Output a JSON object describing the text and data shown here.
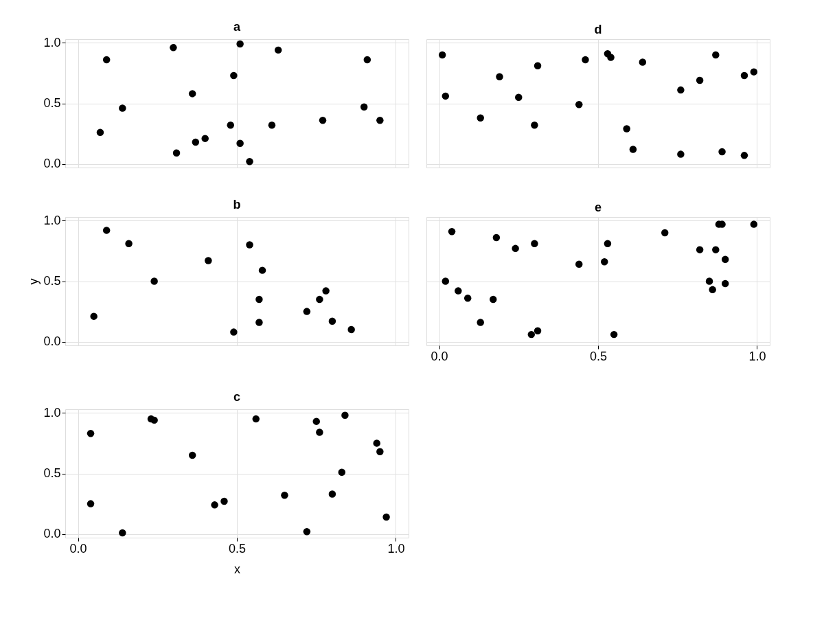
{
  "chart_data": [
    {
      "type": "scatter",
      "title": "a",
      "tick_labels": "y",
      "grid": true,
      "marker": "circle",
      "xlim": [
        -0.04,
        1.04
      ],
      "ylim": [
        -0.03,
        1.03
      ],
      "xticks": [
        0.0,
        0.5,
        1.0
      ],
      "yticks": [
        {
          "value": 0,
          "label": "0.0"
        },
        {
          "value": 0.5,
          "label": "0.5"
        },
        {
          "value": 1,
          "label": "1.0"
        }
      ],
      "x": [
        0.07,
        0.09,
        0.14,
        0.3,
        0.31,
        0.36,
        0.37,
        0.4,
        0.48,
        0.49,
        0.51,
        0.51,
        0.54,
        0.61,
        0.63,
        0.77,
        0.9,
        0.91,
        0.95
      ],
      "series": [
        {
          "color": "#000000",
          "values": [
            0.26,
            0.86,
            0.46,
            0.96,
            0.09,
            0.58,
            0.18,
            0.21,
            0.32,
            0.73,
            0.99,
            0.17,
            0.02,
            0.32,
            0.94,
            0.36,
            0.47,
            0.86,
            0.36
          ]
        }
      ]
    },
    {
      "type": "scatter",
      "title": "d",
      "tick_labels": false,
      "grid": true,
      "marker": "circle",
      "xlim": [
        -0.04,
        1.04
      ],
      "ylim": [
        -0.03,
        1.03
      ],
      "xticks": [
        0.0,
        0.5,
        1.0
      ],
      "yticks": [
        0,
        0.5,
        1
      ],
      "x": [
        0.01,
        0.02,
        0.13,
        0.19,
        0.25,
        0.3,
        0.31,
        0.44,
        0.46,
        0.53,
        0.54,
        0.59,
        0.61,
        0.64,
        0.76,
        0.76,
        0.82,
        0.87,
        0.89,
        0.96,
        0.96,
        0.99
      ],
      "series": [
        {
          "color": "#000000",
          "values": [
            0.9,
            0.56,
            0.38,
            0.72,
            0.55,
            0.32,
            0.81,
            0.49,
            0.86,
            0.91,
            0.88,
            0.29,
            0.12,
            0.84,
            0.61,
            0.08,
            0.69,
            0.9,
            0.1,
            0.73,
            0.07,
            0.76
          ]
        }
      ]
    },
    {
      "type": "scatter",
      "title": "b",
      "ylabel": "y",
      "tick_labels": "y",
      "grid": true,
      "marker": "circle",
      "xlim": [
        -0.04,
        1.04
      ],
      "ylim": [
        -0.03,
        1.03
      ],
      "xticks": [
        0.0,
        0.5,
        1.0
      ],
      "yticks": [
        {
          "value": 0,
          "label": "0.0"
        },
        {
          "value": 0.5,
          "label": "0.5"
        },
        {
          "value": 1,
          "label": "1.0"
        }
      ],
      "x": [
        0.05,
        0.09,
        0.16,
        0.24,
        0.41,
        0.49,
        0.54,
        0.57,
        0.57,
        0.58,
        0.72,
        0.76,
        0.78,
        0.8,
        0.86
      ],
      "series": [
        {
          "color": "#000000",
          "values": [
            0.21,
            0.92,
            0.81,
            0.5,
            0.67,
            0.08,
            0.8,
            0.35,
            0.16,
            0.59,
            0.25,
            0.35,
            0.42,
            0.17,
            0.1
          ]
        }
      ]
    },
    {
      "type": "scatter",
      "title": "e",
      "tick_labels": "x",
      "grid": true,
      "marker": "circle",
      "xlim": [
        -0.04,
        1.04
      ],
      "ylim": [
        -0.03,
        1.03
      ],
      "xticks": [
        {
          "value": 0,
          "label": "0.0"
        },
        {
          "value": 0.5,
          "label": "0.5"
        },
        {
          "value": 1,
          "label": "1.0"
        }
      ],
      "yticks": [
        0,
        0.5,
        1
      ],
      "x": [
        0.02,
        0.04,
        0.06,
        0.09,
        0.13,
        0.17,
        0.18,
        0.24,
        0.29,
        0.3,
        0.31,
        0.44,
        0.52,
        0.53,
        0.55,
        0.71,
        0.82,
        0.85,
        0.86,
        0.87,
        0.88,
        0.89,
        0.9,
        0.9,
        0.99
      ],
      "series": [
        {
          "color": "#000000",
          "values": [
            0.5,
            0.91,
            0.42,
            0.36,
            0.16,
            0.35,
            0.86,
            0.77,
            0.06,
            0.81,
            0.09,
            0.64,
            0.66,
            0.81,
            0.06,
            0.9,
            0.76,
            0.5,
            0.43,
            0.76,
            0.97,
            0.97,
            0.48,
            0.68,
            0.97
          ]
        }
      ]
    },
    {
      "type": "scatter",
      "title": "c",
      "xlabel": "x",
      "grid": true,
      "marker": "circle",
      "xlim": [
        -0.04,
        1.04
      ],
      "ylim": [
        -0.03,
        1.03
      ],
      "xticks": [
        {
          "value": 0,
          "label": "0.0"
        },
        {
          "value": 0.5,
          "label": "0.5"
        },
        {
          "value": 1,
          "label": "1.0"
        }
      ],
      "yticks": [
        {
          "value": 0,
          "label": "0.0"
        },
        {
          "value": 0.5,
          "label": "0.5"
        },
        {
          "value": 1,
          "label": "1.0"
        }
      ],
      "x": [
        0.04,
        0.04,
        0.14,
        0.23,
        0.24,
        0.36,
        0.43,
        0.46,
        0.56,
        0.65,
        0.72,
        0.75,
        0.76,
        0.8,
        0.83,
        0.84,
        0.94,
        0.95,
        0.97
      ],
      "series": [
        {
          "color": "#000000",
          "values": [
            0.83,
            0.25,
            0.01,
            0.95,
            0.94,
            0.65,
            0.24,
            0.27,
            0.95,
            0.32,
            0.02,
            0.93,
            0.84,
            0.33,
            0.51,
            0.98,
            0.75,
            0.68,
            0.14
          ]
        }
      ]
    }
  ]
}
